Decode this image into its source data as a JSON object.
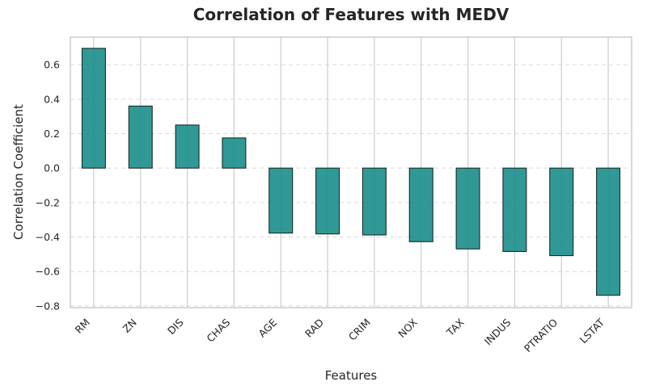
{
  "chart_data": {
    "type": "bar",
    "title": "Correlation of Features with MEDV",
    "xlabel": "Features",
    "ylabel": "Correlation Coefficient",
    "categories": [
      "RM",
      "ZN",
      "DIS",
      "CHAS",
      "AGE",
      "RAD",
      "CRIM",
      "NOX",
      "TAX",
      "INDUS",
      "PTRATIO",
      "LSTAT"
    ],
    "values": [
      0.695,
      0.36,
      0.25,
      0.175,
      -0.377,
      -0.382,
      -0.388,
      -0.427,
      -0.469,
      -0.484,
      -0.508,
      -0.738
    ],
    "ylim": [
      -0.81,
      0.76
    ],
    "yticks": [
      -0.8,
      -0.6,
      -0.4,
      -0.2,
      0.0,
      0.2,
      0.4,
      0.6
    ],
    "ytick_labels": [
      "−0.8",
      "−0.6",
      "−0.4",
      "−0.2",
      "0.0",
      "0.2",
      "0.4",
      "0.6"
    ],
    "grid": true,
    "bar_color": "#1b8e8a",
    "bar_edge_color": "#1a2a2a"
  }
}
